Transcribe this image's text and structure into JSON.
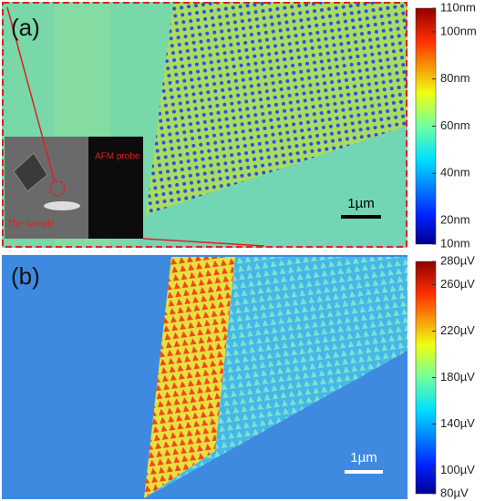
{
  "panels": [
    {
      "label": "(a)",
      "scale_bar": "1µm",
      "inset": {
        "probe_label": "AFM probe",
        "sample_label": "The sample"
      },
      "colorbar": {
        "lim": [
          10,
          110
        ],
        "ticks": [
          {
            "value": 10,
            "label": "10nm"
          },
          {
            "value": 20,
            "label": "20nm"
          },
          {
            "value": 40,
            "label": "40nm"
          },
          {
            "value": 60,
            "label": "60nm"
          },
          {
            "value": 80,
            "label": "80nm"
          },
          {
            "value": 100,
            "label": "100nm"
          },
          {
            "value": 110,
            "label": "110nm"
          }
        ]
      }
    },
    {
      "label": "(b)",
      "scale_bar": "1µm",
      "colorbar": {
        "lim": [
          80,
          280
        ],
        "ticks": [
          {
            "value": 80,
            "label": "80µV"
          },
          {
            "value": 100,
            "label": "100µV"
          },
          {
            "value": 140,
            "label": "140µV"
          },
          {
            "value": 180,
            "label": "180µV"
          },
          {
            "value": 220,
            "label": "220µV"
          },
          {
            "value": 260,
            "label": "260µV"
          },
          {
            "value": 280,
            "label": "280µV"
          }
        ]
      }
    }
  ]
}
